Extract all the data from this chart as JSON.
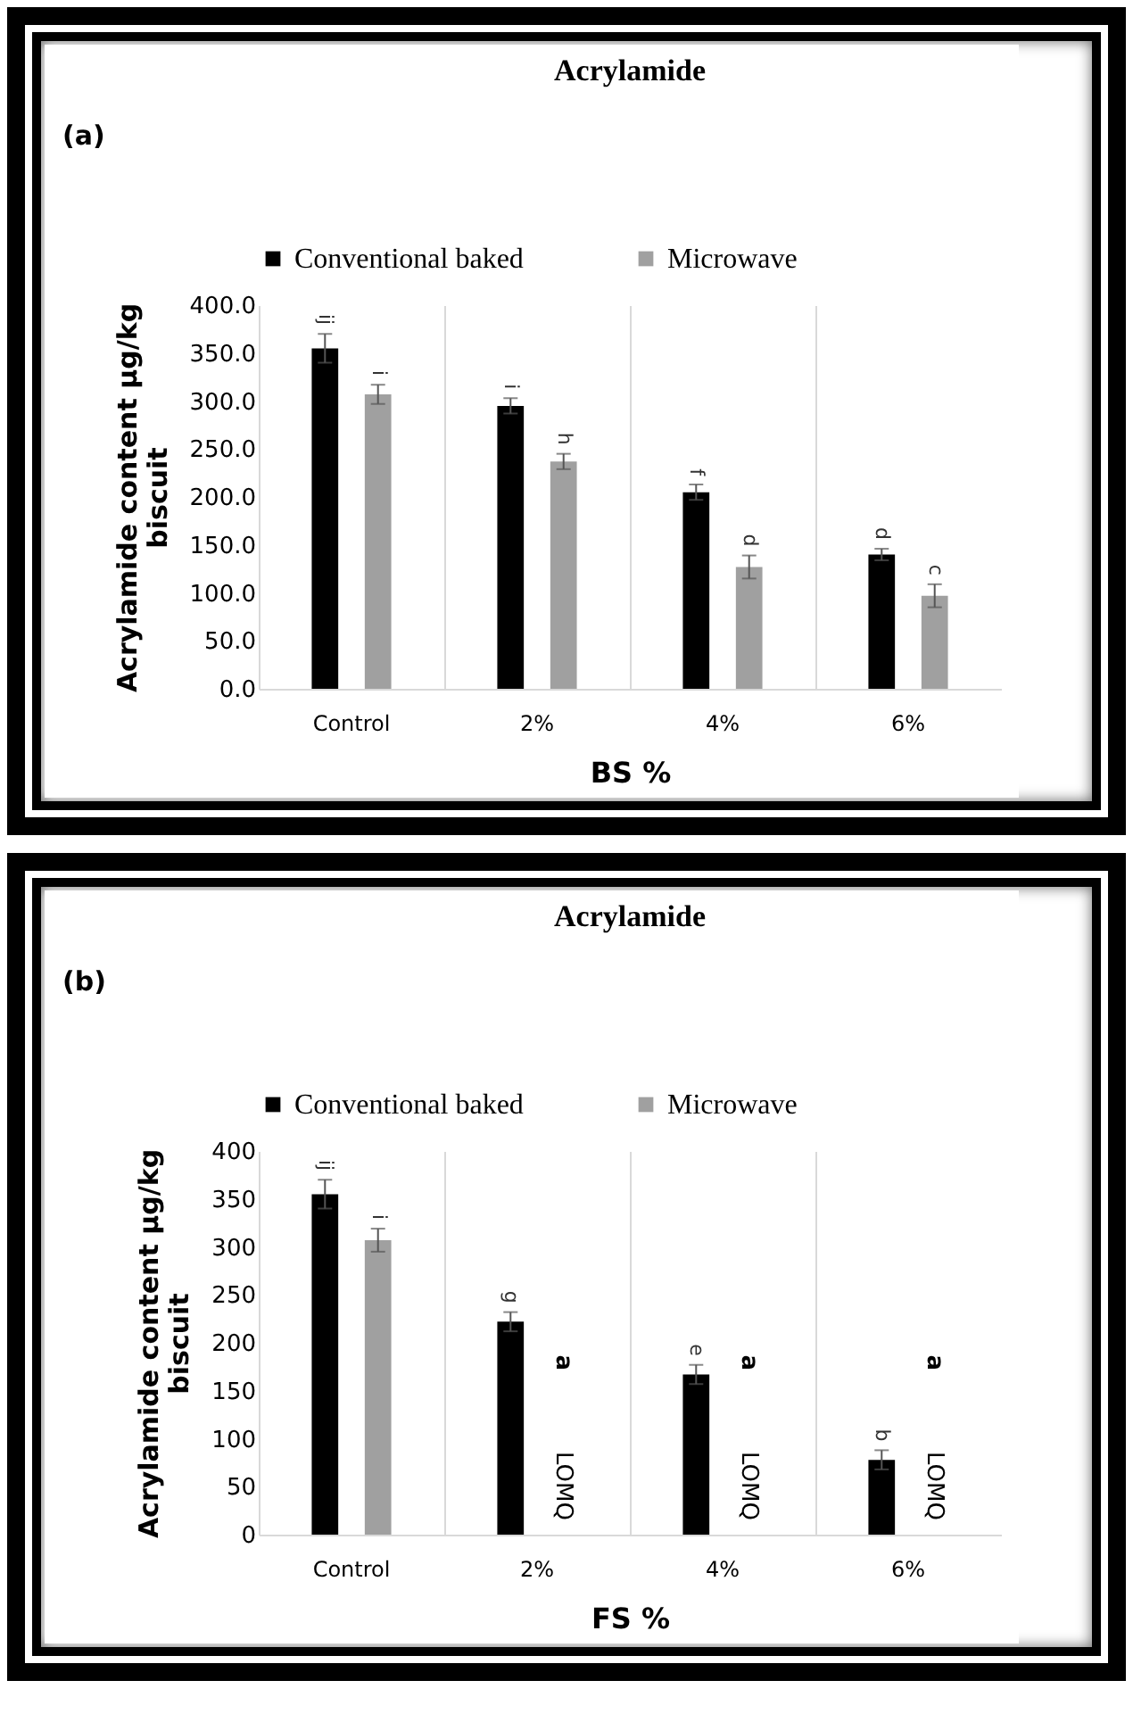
{
  "chart_data": [
    {
      "type": "bar",
      "title": "Acrylamide",
      "xlabel": "BS %",
      "ylabel": "Acrylamide content µg/kg biscuit",
      "categories": [
        "Control",
        "2%",
        "4%",
        "6%"
      ],
      "series": [
        {
          "name": "Conventional baked",
          "color": "#000000",
          "values": [
            355,
            295,
            205,
            140
          ],
          "errors": [
            15,
            8,
            8,
            6
          ],
          "value_labels": [
            "ij",
            "i",
            "f",
            "d"
          ]
        },
        {
          "name": "Microwave",
          "color": "#a0a0a0",
          "values": [
            307,
            237,
            127,
            97
          ],
          "errors": [
            10,
            8,
            12,
            12
          ],
          "value_labels": [
            "i",
            "h",
            "d",
            "c"
          ]
        }
      ],
      "ylim": [
        0,
        400
      ],
      "yticks": [
        {
          "value": 0,
          "label": "0.0"
        },
        {
          "value": 50,
          "label": "50.0"
        },
        {
          "value": 100,
          "label": "100.0"
        },
        {
          "value": 150,
          "label": "150.0"
        },
        {
          "value": 200,
          "label": "200.0"
        },
        {
          "value": 250,
          "label": "250.0"
        },
        {
          "value": 300,
          "label": "300.0"
        },
        {
          "value": 350,
          "label": "350.0"
        },
        {
          "value": 400,
          "label": "400.0"
        }
      ],
      "grid": "x",
      "legend": "top",
      "annotations": [
        "(a)"
      ]
    },
    {
      "type": "bar",
      "title": "Acrylamide",
      "xlabel": "FS %",
      "ylabel": "Acrylamide content µg/kg biscuit",
      "categories": [
        "Control",
        "2%",
        "4%",
        "6%"
      ],
      "series": [
        {
          "name": "Conventional baked",
          "color": "#000000",
          "values": [
            355,
            222,
            167,
            78
          ],
          "errors": [
            15,
            10,
            10,
            10
          ],
          "value_labels": [
            "ij",
            "g",
            "e",
            "b"
          ]
        },
        {
          "name": "Microwave",
          "color": "#a0a0a0",
          "values": [
            307,
            null,
            null,
            null
          ],
          "errors": [
            12,
            null,
            null,
            null
          ],
          "value_labels": [
            "i",
            "a",
            "a",
            "a"
          ]
        }
      ],
      "ylim": [
        0,
        400
      ],
      "yticks": [
        0,
        50,
        100,
        150,
        200,
        250,
        300,
        350,
        400
      ],
      "grid": "x",
      "legend": "top",
      "annotations": [
        "(b)",
        "LOMQ",
        "LOMQ",
        "LOMQ"
      ]
    }
  ]
}
